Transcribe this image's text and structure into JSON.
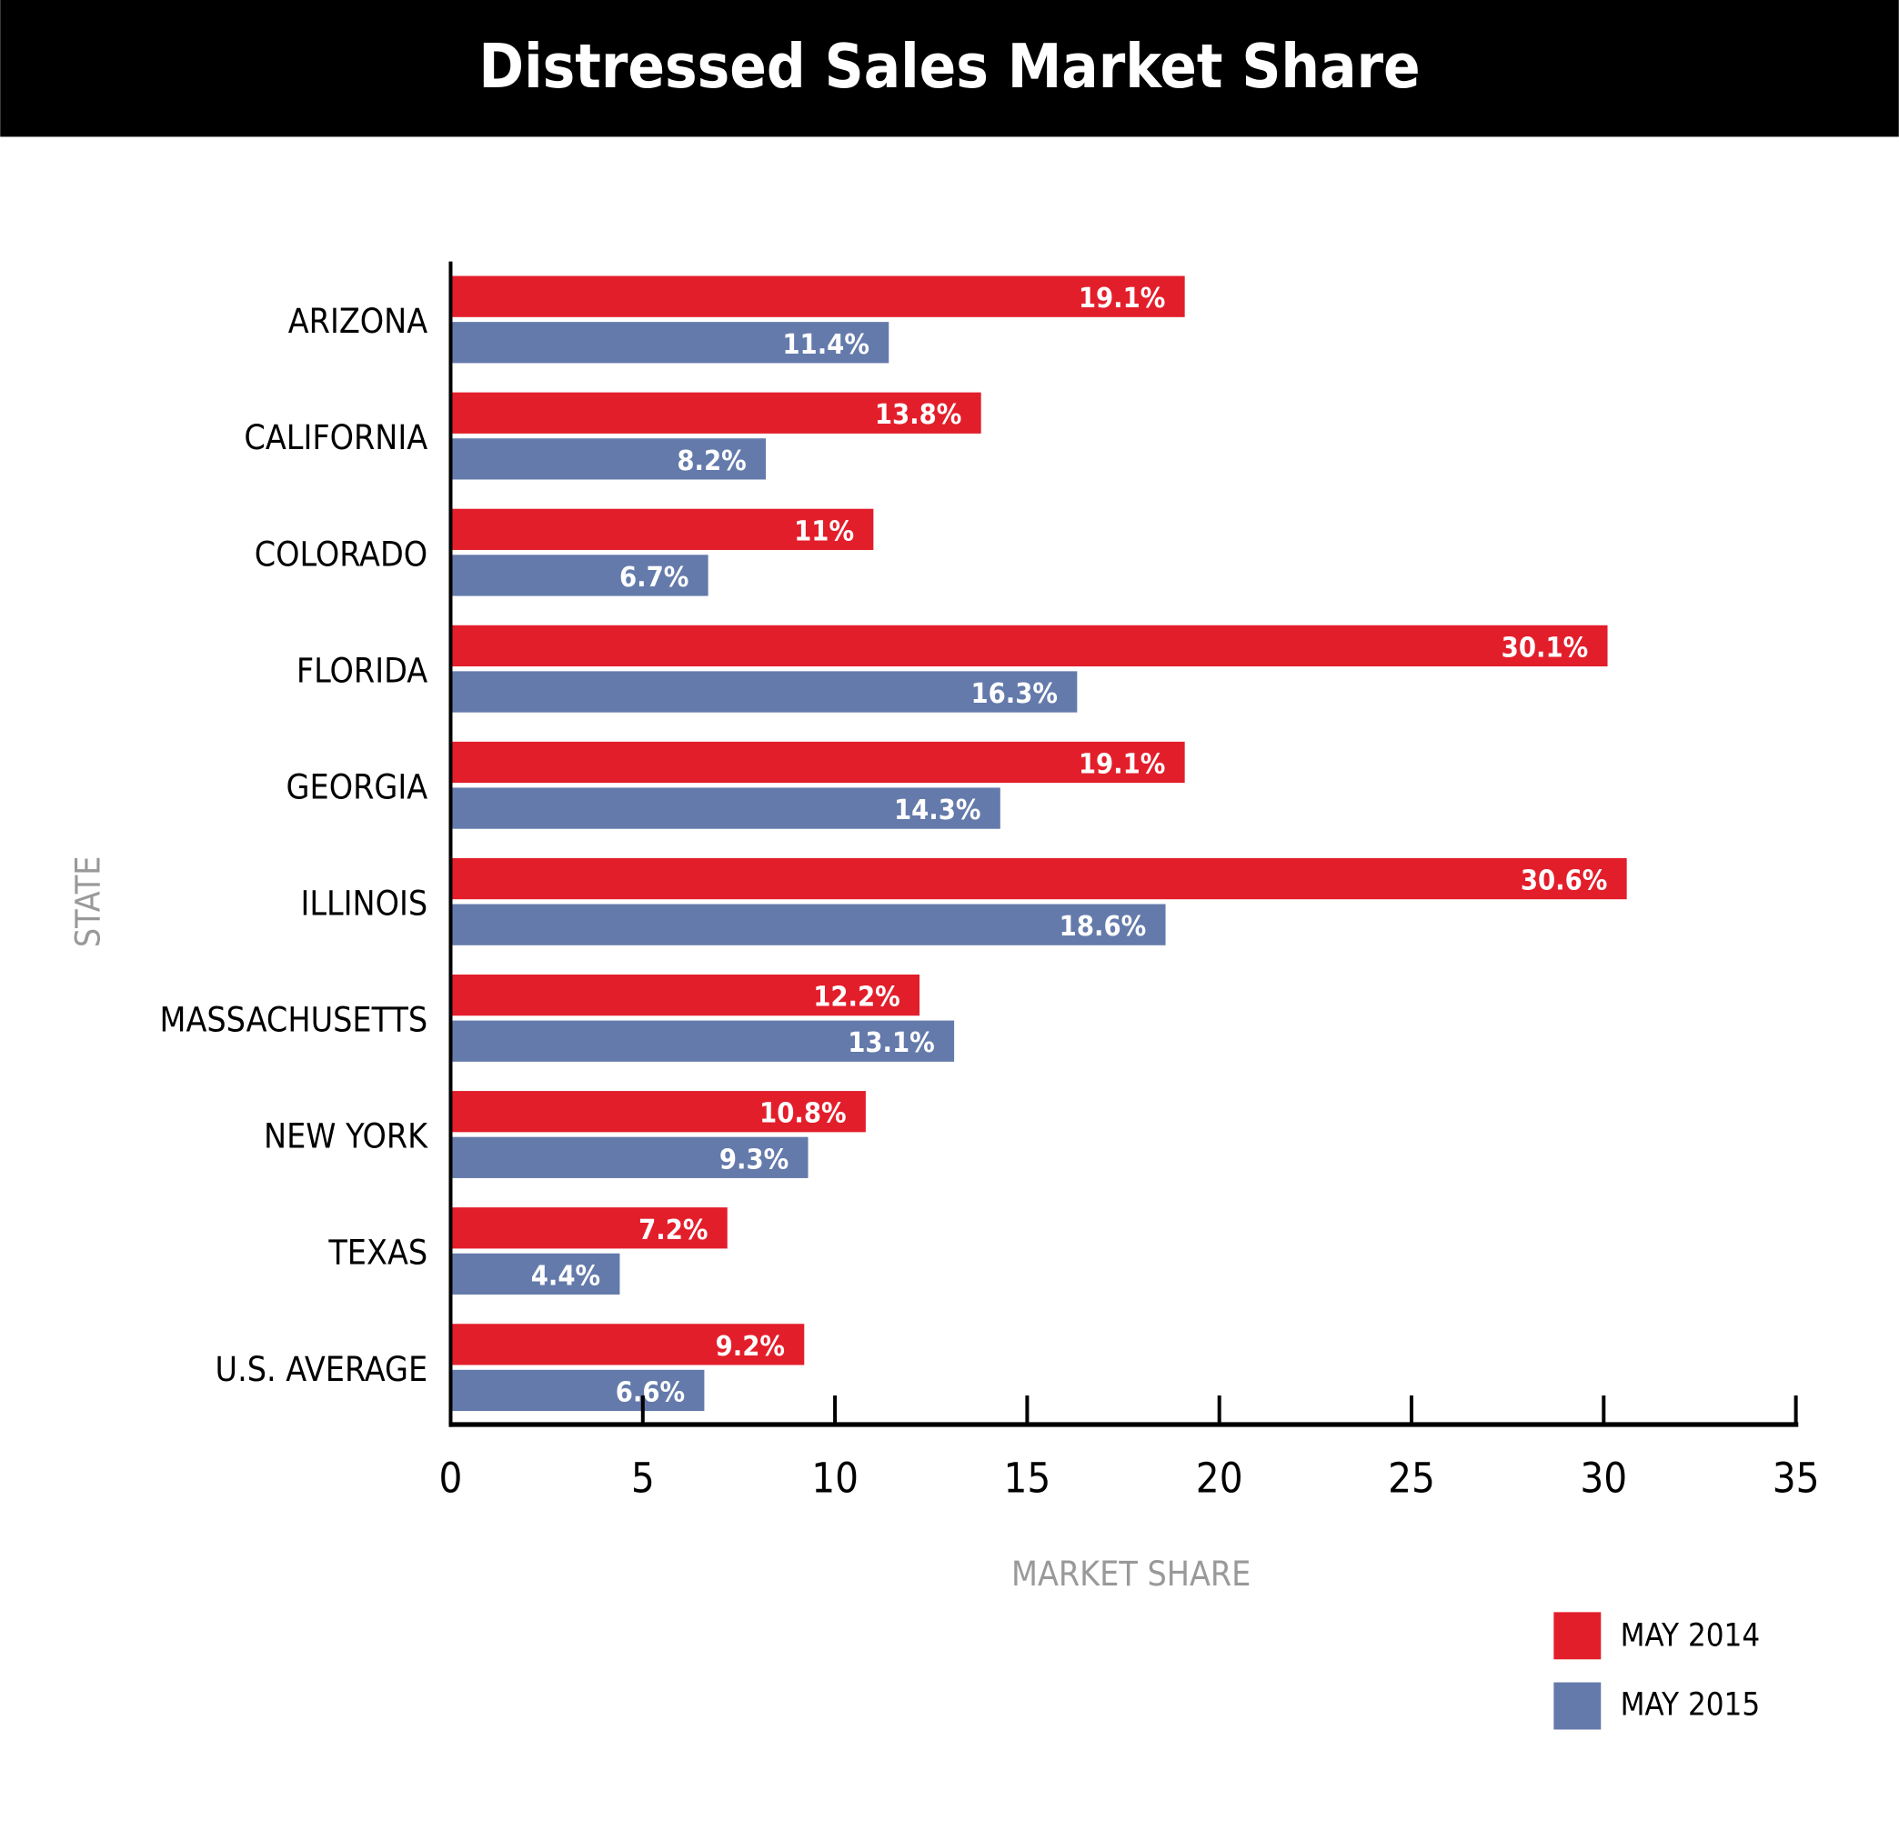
{
  "chart_data": {
    "type": "bar",
    "orientation": "horizontal",
    "title": "Distressed Sales Market Share",
    "xlabel": "MARKET SHARE",
    "ylabel": "STATE",
    "xlim": [
      0,
      35
    ],
    "xticks": [
      "0",
      "5",
      "10",
      "15",
      "20",
      "25",
      "30",
      "35"
    ],
    "categories": [
      "ARIZONA",
      "CALIFORNIA",
      "COLORADO",
      "FLORIDA",
      "GEORGIA",
      "ILLINOIS",
      "MASSACHUSETTS",
      "NEW YORK",
      "TEXAS",
      "U.S. AVERAGE"
    ],
    "series": [
      {
        "name": "MAY 2014",
        "color": "#e31e2b",
        "values": [
          19.1,
          13.8,
          11,
          30.1,
          19.1,
          30.6,
          12.2,
          10.8,
          7.2,
          9.2
        ],
        "labels": [
          "19.1%",
          "13.8%",
          "11%",
          "30.1%",
          "19.1%",
          "30.6%",
          "12.2%",
          "10.8%",
          "7.2%",
          "9.2%"
        ]
      },
      {
        "name": "MAY 2015",
        "color": "#647aab",
        "values": [
          11.4,
          8.2,
          6.7,
          16.3,
          14.3,
          18.6,
          13.1,
          9.3,
          4.4,
          6.6
        ],
        "labels": [
          "11.4%",
          "8.2%",
          "6.7%",
          "16.3%",
          "14.3%",
          "18.6%",
          "13.1%",
          "9.3%",
          "4.4%",
          "6.6%"
        ]
      }
    ],
    "legend": "bottom-right",
    "grid": false
  }
}
